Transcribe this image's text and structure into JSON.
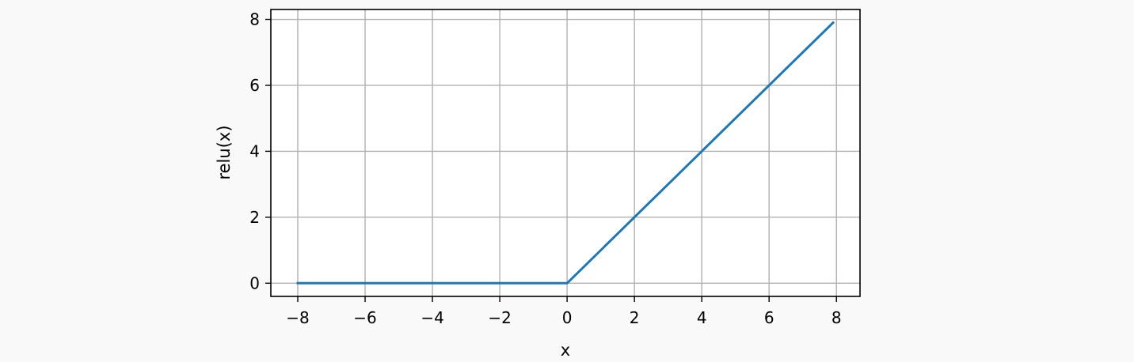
{
  "chart_data": {
    "type": "line",
    "title": "",
    "xlabel": "x",
    "ylabel": "relu(x)",
    "xlim": [
      -8.8,
      8.7
    ],
    "ylim": [
      -0.4,
      8.3
    ],
    "xticks": [
      -8,
      -6,
      -4,
      -2,
      0,
      2,
      4,
      6,
      8
    ],
    "yticks": [
      0,
      2,
      4,
      6,
      8
    ],
    "xtick_labels": [
      "−8",
      "−6",
      "−4",
      "−2",
      "0",
      "2",
      "4",
      "6",
      "8"
    ],
    "ytick_labels": [
      "0",
      "2",
      "4",
      "6",
      "8"
    ],
    "grid": true,
    "series": [
      {
        "color": "#1f77b4",
        "x": [
          -8.0,
          -6.0,
          -4.0,
          -2.0,
          0.0,
          2.0,
          4.0,
          6.0,
          7.9
        ],
        "y": [
          0.0,
          0.0,
          0.0,
          0.0,
          0.0,
          2.0,
          4.0,
          6.0,
          7.9
        ]
      }
    ],
    "grid_color": "#b0b0b0",
    "background": "#ffffff",
    "page_background": "#f9f9f9"
  }
}
